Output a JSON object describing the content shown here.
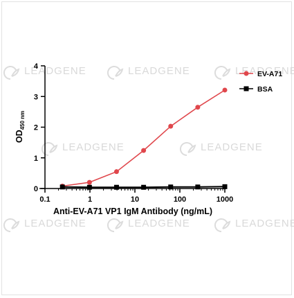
{
  "watermark": {
    "brand": "LEADGENE"
  },
  "chart_data": {
    "type": "line",
    "x_scale": "log",
    "xlim": [
      0.1,
      1000
    ],
    "ylim": [
      0,
      4
    ],
    "xlabel": "Anti-EV-A71 VP1 IgM Antibody (ng/mL)",
    "ylabel": {
      "main": "OD",
      "subscript": "450 nm"
    },
    "x_ticks": [
      "0.1",
      "1",
      "10",
      "100",
      "1000"
    ],
    "y_ticks": [
      "0",
      "1",
      "2",
      "3",
      "4"
    ],
    "legend_position": "top-right",
    "series": [
      {
        "name": "EV-A71",
        "color": "#e0474c",
        "marker": "circle",
        "x": [
          0.244,
          0.977,
          3.906,
          15.625,
          62.5,
          250,
          1000
        ],
        "y": [
          0.08,
          0.2,
          0.55,
          1.24,
          2.03,
          2.65,
          3.21
        ]
      },
      {
        "name": "BSA",
        "color": "#000000",
        "marker": "square",
        "x": [
          0.244,
          0.977,
          3.906,
          15.625,
          62.5,
          250,
          1000
        ],
        "y": [
          0.05,
          0.04,
          0.04,
          0.04,
          0.05,
          0.05,
          0.06
        ]
      }
    ]
  }
}
